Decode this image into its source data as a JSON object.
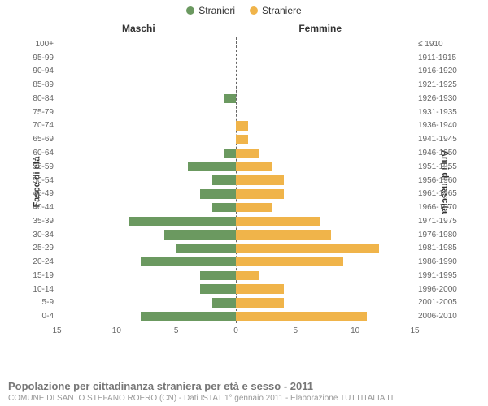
{
  "legend": {
    "male": {
      "label": "Stranieri",
      "color": "#6b9960"
    },
    "female": {
      "label": "Straniere",
      "color": "#f0b44a"
    }
  },
  "columns": {
    "left": "Maschi",
    "right": "Femmine"
  },
  "axis_titles": {
    "left": "Fasce di età",
    "right": "Anni di nascita"
  },
  "chart": {
    "type": "population-pyramid",
    "xlim": 15,
    "x_ticks": [
      15,
      10,
      5,
      0,
      5,
      10,
      15
    ],
    "background_color": "#ffffff",
    "center_line_color": "#666666",
    "bar_height_ratio": 0.68,
    "rows": [
      {
        "age": "100+",
        "birth": "≤ 1910",
        "m": 0,
        "f": 0
      },
      {
        "age": "95-99",
        "birth": "1911-1915",
        "m": 0,
        "f": 0
      },
      {
        "age": "90-94",
        "birth": "1916-1920",
        "m": 0,
        "f": 0
      },
      {
        "age": "85-89",
        "birth": "1921-1925",
        "m": 0,
        "f": 0
      },
      {
        "age": "80-84",
        "birth": "1926-1930",
        "m": 1,
        "f": 0
      },
      {
        "age": "75-79",
        "birth": "1931-1935",
        "m": 0,
        "f": 0
      },
      {
        "age": "70-74",
        "birth": "1936-1940",
        "m": 0,
        "f": 1
      },
      {
        "age": "65-69",
        "birth": "1941-1945",
        "m": 0,
        "f": 1
      },
      {
        "age": "60-64",
        "birth": "1946-1950",
        "m": 1,
        "f": 2
      },
      {
        "age": "55-59",
        "birth": "1951-1955",
        "m": 4,
        "f": 3
      },
      {
        "age": "50-54",
        "birth": "1956-1960",
        "m": 2,
        "f": 4
      },
      {
        "age": "45-49",
        "birth": "1961-1965",
        "m": 3,
        "f": 4
      },
      {
        "age": "40-44",
        "birth": "1966-1970",
        "m": 2,
        "f": 3
      },
      {
        "age": "35-39",
        "birth": "1971-1975",
        "m": 9,
        "f": 7
      },
      {
        "age": "30-34",
        "birth": "1976-1980",
        "m": 6,
        "f": 8
      },
      {
        "age": "25-29",
        "birth": "1981-1985",
        "m": 5,
        "f": 12
      },
      {
        "age": "20-24",
        "birth": "1986-1990",
        "m": 8,
        "f": 9
      },
      {
        "age": "15-19",
        "birth": "1991-1995",
        "m": 3,
        "f": 2
      },
      {
        "age": "10-14",
        "birth": "1996-2000",
        "m": 3,
        "f": 4
      },
      {
        "age": "5-9",
        "birth": "2001-2005",
        "m": 2,
        "f": 4
      },
      {
        "age": "0-4",
        "birth": "2006-2010",
        "m": 8,
        "f": 11
      }
    ]
  },
  "footer": {
    "title": "Popolazione per cittadinanza straniera per età e sesso - 2011",
    "subtitle": "COMUNE DI SANTO STEFANO ROERO (CN) - Dati ISTAT 1° gennaio 2011 - Elaborazione TUTTITALIA.IT"
  }
}
